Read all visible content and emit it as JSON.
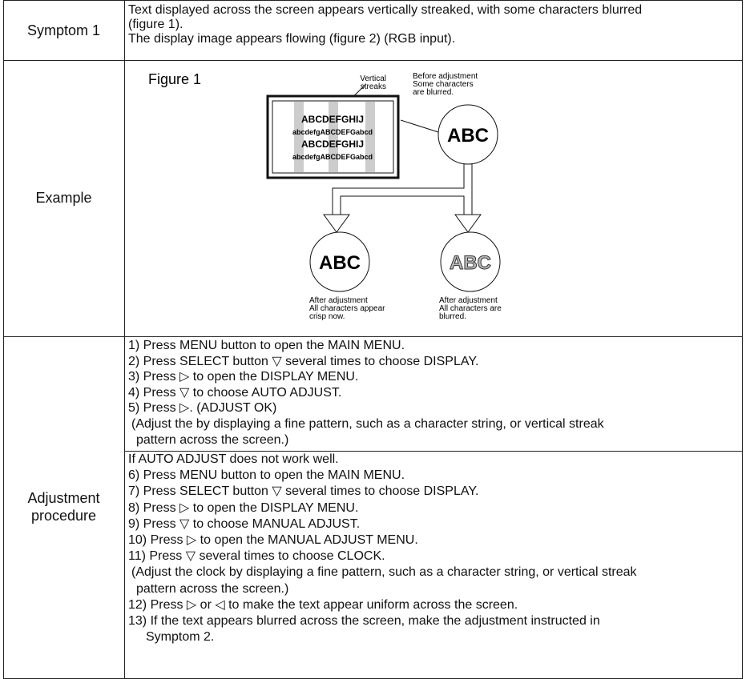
{
  "symptom": {
    "label": "Symptom 1",
    "lines": [
      "Text displayed across the screen appears vertically streaked, with some characters blurred",
      "(figure 1).",
      "The display image appears flowing (figure 2) (RGB input)."
    ]
  },
  "example": {
    "label": "Example",
    "figure": {
      "title": "Figure 1",
      "streaks_label": [
        "Vertical",
        "streaks"
      ],
      "before_label": [
        "Before adjustment",
        "Some characters",
        "are blurred."
      ],
      "screen_lines": [
        "ABCDEFGHIJ",
        "abcdefgABCDEFGabcd",
        "ABCDEFGHIJ",
        "abcdefgABCDEFGabcd"
      ],
      "circles": [
        "ABC",
        "ABC",
        "ABC"
      ],
      "after_crisp": [
        "After adjustment",
        "All characters appear",
        "crisp now."
      ],
      "after_blurred": [
        "After adjustment",
        "All characters are",
        "blurred."
      ]
    }
  },
  "procedure": {
    "label": [
      "Adjustment",
      "procedure"
    ],
    "auto": [
      "1) Press MENU button to open the MAIN MENU.",
      "2) Press SELECT button ▽ several times to choose DISPLAY.",
      "3) Press ▷ to open the DISPLAY MENU.",
      "4) Press ▽ to choose AUTO ADJUST.",
      "5) Press ▷. (ADJUST OK)",
      "(Adjust the by displaying a fine pattern, such as a character string, or vertical streak",
      "pattern across the screen.)"
    ],
    "manual": [
      "If AUTO ADJUST does not work well.",
      "6) Press MENU button to open the MAIN MENU.",
      "7) Press SELECT button ▽ several times to choose DISPLAY.",
      "8) Press ▷ to open the DISPLAY MENU.",
      "9) Press ▽ to choose MANUAL ADJUST.",
      "10) Press ▷ to open the MANUAL ADJUST MENU.",
      "11) Press ▽ several times to choose CLOCK.",
      "(Adjust the clock by displaying a fine pattern, such as a character string, or vertical streak",
      "pattern across the screen.)",
      "12) Press ▷ or ◁ to make the text appear uniform across the screen.",
      "13) If the text appears blurred across the screen, make the adjustment instructed in",
      "Symptom 2."
    ]
  }
}
